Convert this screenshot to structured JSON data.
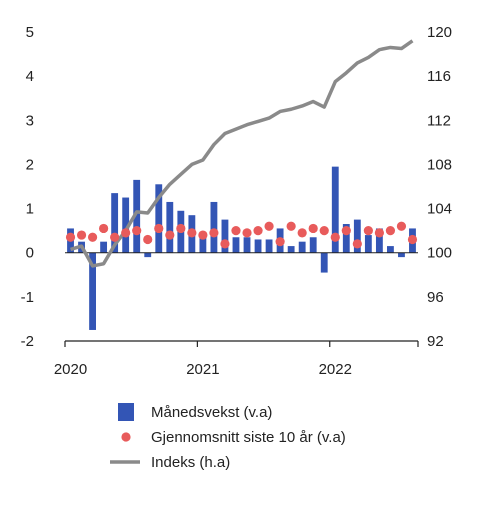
{
  "chart_data": {
    "type": "bar",
    "title": "",
    "x": [
      "2020-01",
      "2020-02",
      "2020-03",
      "2020-04",
      "2020-05",
      "2020-06",
      "2020-07",
      "2020-08",
      "2020-09",
      "2020-10",
      "2020-11",
      "2020-12",
      "2021-01",
      "2021-02",
      "2021-03",
      "2021-04",
      "2021-05",
      "2021-06",
      "2021-07",
      "2021-08",
      "2021-09",
      "2021-10",
      "2021-11",
      "2021-12",
      "2022-01",
      "2022-02",
      "2022-03",
      "2022-04",
      "2022-05",
      "2022-06",
      "2022-07",
      "2022-08"
    ],
    "x_tick_labels": [
      "2020",
      "2021",
      "2022"
    ],
    "left_axis": {
      "ylim": [
        -2,
        5
      ],
      "ticks": [
        "-2",
        "-1",
        "0",
        "1",
        "2",
        "3",
        "4",
        "5"
      ]
    },
    "right_axis": {
      "ylim": [
        92,
        120
      ],
      "ticks": [
        "92",
        "96",
        "100",
        "104",
        "108",
        "112",
        "116",
        "120"
      ]
    },
    "grid": false,
    "legend_position": "bottom",
    "colors": {
      "bars": "#3355b5",
      "dots": "#e85b5b",
      "line": "#8a8a8a",
      "axis": "#222222"
    },
    "series": [
      {
        "name": "Månedsvekst (v.a)",
        "type": "bar",
        "axis": "left",
        "values": [
          0.55,
          0.25,
          -1.75,
          0.25,
          1.35,
          1.25,
          1.65,
          -0.1,
          1.55,
          1.15,
          0.95,
          0.85,
          0.35,
          1.15,
          0.75,
          0.35,
          0.35,
          0.3,
          0.3,
          0.55,
          0.15,
          0.25,
          0.35,
          -0.45,
          1.95,
          0.65,
          0.75,
          0.4,
          0.55,
          0.15,
          -0.1,
          0.55
        ]
      },
      {
        "name": "Gjennomsnitt siste 10 år (v.a)",
        "type": "scatter",
        "axis": "left",
        "values": [
          0.35,
          0.4,
          0.35,
          0.55,
          0.35,
          0.45,
          0.5,
          0.3,
          0.55,
          0.4,
          0.55,
          0.45,
          0.4,
          0.45,
          0.2,
          0.5,
          0.45,
          0.5,
          0.6,
          0.25,
          0.6,
          0.45,
          0.55,
          0.5,
          0.35,
          0.5,
          0.2,
          0.5,
          0.45,
          0.5,
          0.6,
          0.3
        ]
      },
      {
        "name": "Indeks (h.a)",
        "type": "line",
        "axis": "right",
        "values": [
          100.3,
          100.6,
          98.8,
          99.0,
          100.7,
          102.0,
          103.7,
          103.6,
          105.0,
          106.2,
          107.1,
          108.0,
          108.4,
          109.8,
          110.8,
          111.2,
          111.6,
          111.9,
          112.2,
          112.8,
          113.0,
          113.3,
          113.7,
          113.2,
          115.5,
          116.3,
          117.2,
          117.7,
          118.4,
          118.6,
          118.5,
          119.2
        ]
      }
    ]
  }
}
